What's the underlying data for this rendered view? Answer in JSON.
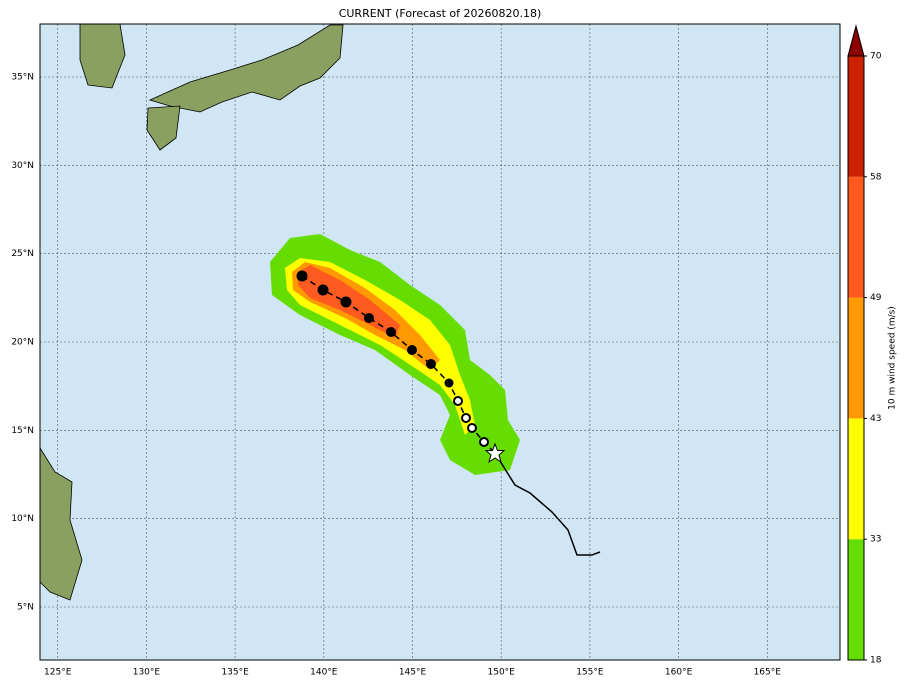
{
  "title": "CURRENT (Forecast of 20260820.18)",
  "map": {
    "xlim": [
      124,
      169.1
    ],
    "ylim": [
      2,
      38
    ],
    "xticks": [
      {
        "value": 125,
        "label": "125°E"
      },
      {
        "value": 130,
        "label": "130°E"
      },
      {
        "value": 135,
        "label": "135°E"
      },
      {
        "value": 140,
        "label": "140°E"
      },
      {
        "value": 145,
        "label": "145°E"
      },
      {
        "value": 150,
        "label": "150°E"
      },
      {
        "value": 155,
        "label": "155°E"
      },
      {
        "value": 160,
        "label": "160°E"
      },
      {
        "value": 165,
        "label": "165°E"
      }
    ],
    "yticks": [
      {
        "value": 5,
        "label": "5°N"
      },
      {
        "value": 10,
        "label": "10°N"
      },
      {
        "value": 15,
        "label": "15°N"
      },
      {
        "value": 20,
        "label": "20°N"
      },
      {
        "value": 25,
        "label": "25°N"
      },
      {
        "value": 30,
        "label": "30°N"
      },
      {
        "value": 35,
        "label": "35°N"
      }
    ],
    "grid": true
  },
  "colorbar": {
    "label": "10 m wind speed (m/s)",
    "ticks": [
      18,
      33,
      43,
      49,
      58,
      70
    ],
    "colors": [
      "#66dd00",
      "#ffff00",
      "#ff9900",
      "#ff5a1f",
      "#cc2200"
    ],
    "extend_color": "#8b0000"
  }
}
